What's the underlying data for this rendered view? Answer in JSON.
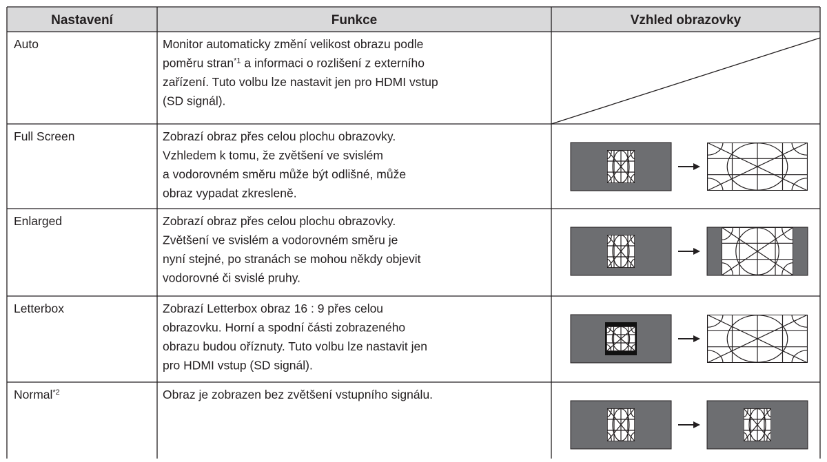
{
  "table": {
    "header": [
      "Nastavení",
      "Funkce",
      "Vzhled obrazovky"
    ],
    "rows": [
      {
        "setting": "Auto",
        "function": [
          "Monitor automaticky změní velikost obrazu podle",
          {
            "before": "poměru stran",
            "sup": "*1",
            "after": " a informaci o rozlišení z externího"
          },
          "zařízení. Tuto volbu lze nastavit jen pro HDMI vstup",
          "(SD signál)."
        ]
      },
      {
        "setting": "Full Screen",
        "function": [
          "Zobrazí obraz přes celou plochu obrazovky.",
          "Vzhledem k tomu, že zvětšení ve svislém",
          "a vodorovném směru může být odlišné, může",
          "obraz vypadat zkresleně."
        ]
      },
      {
        "setting": "Enlarged",
        "function": [
          "Zobrazí obraz přes celou plochu obrazovky.",
          "Zvětšení ve svislém a vodorovném směru je",
          "nyní stejné, po stranách se mohou někdy objevit",
          "vodorovné či svislé pruhy."
        ]
      },
      {
        "setting": "Letterbox",
        "function": [
          "Zobrazí Letterbox obraz 16 : 9 přes celou",
          "obrazovku. Horní a spodní části zobrazeného",
          "obrazu budou oříznuty. Tuto volbu lze nastavit jen",
          "pro HDMI vstup (SD signál)."
        ]
      },
      {
        "setting": {
          "text": "Normal",
          "sup": "*2"
        },
        "function": [
          "Obraz je zobrazen bez zvětšení vstupního signálu."
        ]
      }
    ]
  }
}
